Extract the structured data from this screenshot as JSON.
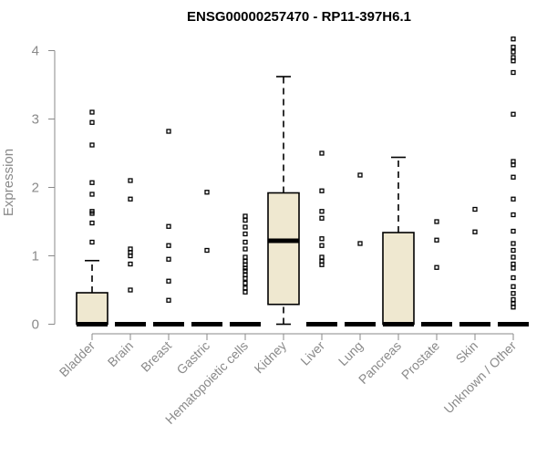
{
  "chart_data": {
    "type": "boxplot",
    "title": "ENSG00000257470 - RP11-397H6.1",
    "ylabel": "Expression",
    "xlabel": "",
    "ylim": [
      0,
      4.2
    ],
    "yticks": [
      0,
      1,
      2,
      3,
      4
    ],
    "grid": false,
    "box_color": "#efe8d0",
    "categories": [
      "Bladder",
      "Brain",
      "Breast",
      "Gastric",
      "Hematopoietic cells",
      "Kidney",
      "Liver",
      "Lung",
      "Pancreas",
      "Prostate",
      "Skin",
      "Unknown / Other"
    ],
    "boxes": [
      {
        "q1": 0,
        "median": 0,
        "q3": 0.46,
        "whisker_low": 0,
        "whisker_high": 0.93,
        "outliers": [
          3.1,
          2.95,
          2.62,
          2.07,
          1.9,
          1.65,
          1.62,
          1.48,
          1.2
        ]
      },
      {
        "q1": 0,
        "median": 0,
        "q3": 0,
        "whisker_low": 0,
        "whisker_high": 0,
        "outliers": [
          2.1,
          1.83,
          1.1,
          1.05,
          1.0,
          0.88,
          0.5
        ]
      },
      {
        "q1": 0,
        "median": 0,
        "q3": 0,
        "whisker_low": 0,
        "whisker_high": 0,
        "outliers": [
          2.82,
          1.43,
          1.15,
          0.95,
          0.63,
          0.35
        ]
      },
      {
        "q1": 0,
        "median": 0,
        "q3": 0,
        "whisker_low": 0,
        "whisker_high": 0,
        "outliers": [
          1.93,
          1.08
        ]
      },
      {
        "q1": 0,
        "median": 0,
        "q3": 0,
        "whisker_low": 0,
        "whisker_high": 0,
        "outliers": [
          1.58,
          1.52,
          1.42,
          1.32,
          1.2,
          1.1,
          0.98,
          0.92,
          0.87,
          0.82,
          0.78,
          0.72,
          0.67,
          0.6,
          0.53,
          0.47
        ]
      },
      {
        "q1": 0.29,
        "median": 1.22,
        "q3": 1.92,
        "whisker_low": 0,
        "whisker_high": 3.62,
        "outliers": []
      },
      {
        "q1": 0,
        "median": 0,
        "q3": 0,
        "whisker_low": 0,
        "whisker_high": 0,
        "outliers": [
          2.5,
          1.95,
          1.65,
          1.55,
          1.25,
          1.15,
          0.98,
          0.92,
          0.87
        ]
      },
      {
        "q1": 0,
        "median": 0,
        "q3": 0,
        "whisker_low": 0,
        "whisker_high": 0,
        "outliers": [
          2.18,
          1.18
        ]
      },
      {
        "q1": 0,
        "median": 0,
        "q3": 1.34,
        "whisker_low": 0,
        "whisker_high": 2.44,
        "outliers": []
      },
      {
        "q1": 0,
        "median": 0,
        "q3": 0,
        "whisker_low": 0,
        "whisker_high": 0,
        "outliers": [
          1.5,
          1.23,
          0.83
        ]
      },
      {
        "q1": 0,
        "median": 0,
        "q3": 0,
        "whisker_low": 0,
        "whisker_high": 0,
        "outliers": [
          1.68,
          1.35
        ]
      },
      {
        "q1": 0,
        "median": 0,
        "q3": 0,
        "whisker_low": 0,
        "whisker_high": 0,
        "outliers": [
          4.17,
          4.05,
          3.98,
          3.9,
          3.85,
          3.68,
          3.07,
          2.38,
          2.33,
          2.15,
          1.83,
          1.6,
          1.36,
          1.18,
          1.08,
          0.98,
          0.88,
          0.82,
          0.68,
          0.55,
          0.45,
          0.36,
          0.3,
          0.25
        ]
      }
    ]
  }
}
